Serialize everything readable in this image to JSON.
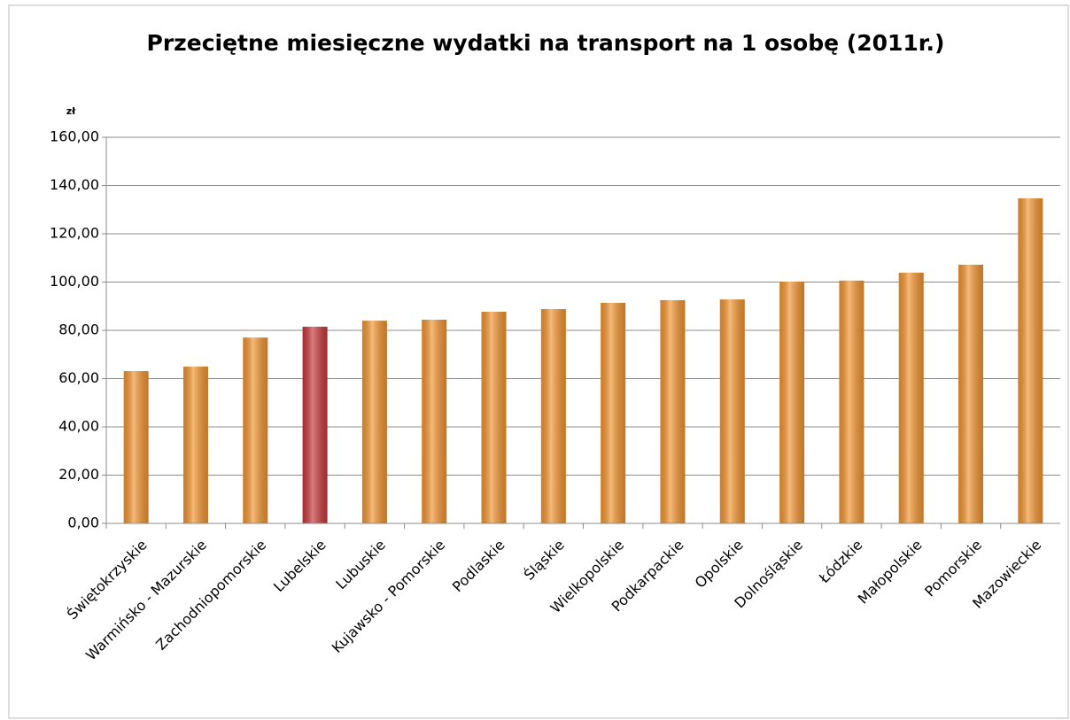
{
  "chart_data": {
    "type": "bar",
    "title": "Przeciętne miesięczne wydatki na transport na 1 osobę (2011r.)",
    "y_label": "zł",
    "categories": [
      "Świętokrzyskie",
      "Warmińsko - Mazurskie",
      "Zachodniopomorskie",
      "Lubelskie",
      "Lubuskie",
      "Kujawsko - Pomorskie",
      "Podlaskie",
      "Śląskie",
      "Wielkopolskie",
      "Podkarpackie",
      "Opolskie",
      "Dolnośląskie",
      "Łódzkie",
      "Małopolskie",
      "Pomorskie",
      "Mazowieckie"
    ],
    "values": [
      63.1,
      65.0,
      77.0,
      81.5,
      84.0,
      84.4,
      87.7,
      88.8,
      91.4,
      92.5,
      92.8,
      100.2,
      100.6,
      103.9,
      107.2,
      134.7
    ],
    "colors": [
      "#f39530",
      "#f39530",
      "#f39530",
      "#c8383a",
      "#f39530",
      "#f39530",
      "#f39530",
      "#f39530",
      "#f39530",
      "#f39530",
      "#f39530",
      "#f39530",
      "#f39530",
      "#f39530",
      "#f39530",
      "#f39530"
    ],
    "ylim": [
      0,
      160
    ],
    "yticks": [
      {
        "value": 0,
        "label": "0,00"
      },
      {
        "value": 20,
        "label": "20,00"
      },
      {
        "value": 40,
        "label": "40,00"
      },
      {
        "value": 60,
        "label": "60,00"
      },
      {
        "value": 80,
        "label": "80,00"
      },
      {
        "value": 100,
        "label": "100,00"
      },
      {
        "value": 120,
        "label": "120,00"
      },
      {
        "value": 140,
        "label": "140,00"
      },
      {
        "value": 160,
        "label": "160,00"
      }
    ],
    "grid": true
  }
}
